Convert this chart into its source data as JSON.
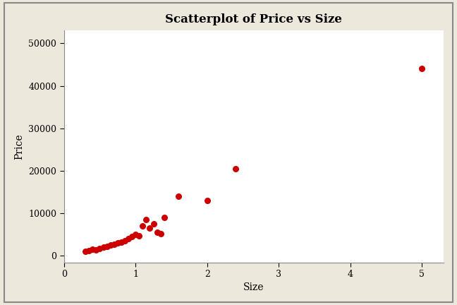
{
  "title": "Scatterplot of Price vs Size",
  "xlabel": "Size",
  "ylabel": "Price",
  "xlim": [
    0.2,
    5.3
  ],
  "ylim": [
    -1500,
    53000
  ],
  "xticks": [
    0,
    1,
    2,
    3,
    4,
    5
  ],
  "yticks": [
    0,
    10000,
    20000,
    30000,
    40000,
    50000
  ],
  "ytick_labels": [
    "0",
    "10000",
    "20000",
    "30000",
    "40000",
    "50000"
  ],
  "dot_color": "#cc0000",
  "dot_size": 30,
  "background_outer": "#ede8dc",
  "background_inner": "#ffffff",
  "border_color": "#999999",
  "title_fontsize": 12,
  "label_fontsize": 10,
  "tick_fontsize": 9,
  "x": [
    0.3,
    0.35,
    0.4,
    0.45,
    0.5,
    0.55,
    0.6,
    0.65,
    0.7,
    0.75,
    0.8,
    0.85,
    0.9,
    0.95,
    1.0,
    1.05,
    1.1,
    1.15,
    1.2,
    1.25,
    1.3,
    1.35,
    1.4,
    1.6,
    2.0,
    2.4,
    5.0
  ],
  "y": [
    1000,
    1200,
    1500,
    1400,
    1800,
    2000,
    2200,
    2500,
    2800,
    3000,
    3200,
    3500,
    4000,
    4500,
    5000,
    4800,
    7000,
    8500,
    6500,
    7500,
    5500,
    5200,
    9000,
    14000,
    13000,
    20500,
    44000
  ]
}
